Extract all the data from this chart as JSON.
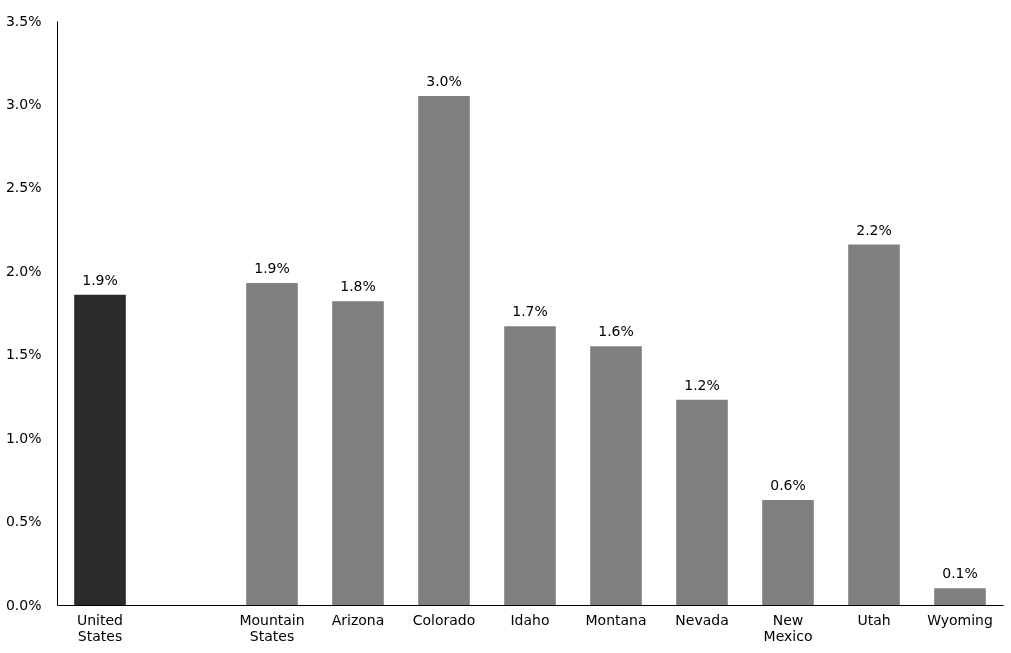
{
  "chart_data": {
    "type": "bar",
    "categories": [
      "United States",
      null,
      "Mountain States",
      "Arizona",
      "Colorado",
      "Idaho",
      "Montana",
      "Nevada",
      "New Mexico",
      "Utah",
      "Wyoming"
    ],
    "values": [
      1.86,
      null,
      1.93,
      1.82,
      3.05,
      1.67,
      1.55,
      1.23,
      0.63,
      2.16,
      0.1
    ],
    "colors": [
      "#2a2a2a",
      null,
      "#7f7f7f",
      "#7f7f7f",
      "#7f7f7f",
      "#7f7f7f",
      "#7f7f7f",
      "#7f7f7f",
      "#7f7f7f",
      "#7f7f7f",
      "#7f7f7f"
    ],
    "value_labels": [
      "1.9%",
      null,
      "1.9%",
      "1.8%",
      "3.0%",
      "1.7%",
      "1.6%",
      "1.2%",
      "0.6%",
      "2.2%",
      "0.1%"
    ],
    "ylim": [
      0,
      3.5
    ],
    "yticks": [
      {
        "value": 0,
        "label": "0.0%"
      },
      {
        "value": 0.5,
        "label": "0.5%"
      },
      {
        "value": 1,
        "label": "1.0%"
      },
      {
        "value": 1.5,
        "label": "1.5%"
      },
      {
        "value": 2,
        "label": "2.0%"
      },
      {
        "value": 2.5,
        "label": "2.5%"
      },
      {
        "value": 3,
        "label": "3.0%"
      },
      {
        "value": 3.5,
        "label": "3.5%"
      }
    ],
    "grid": false
  }
}
